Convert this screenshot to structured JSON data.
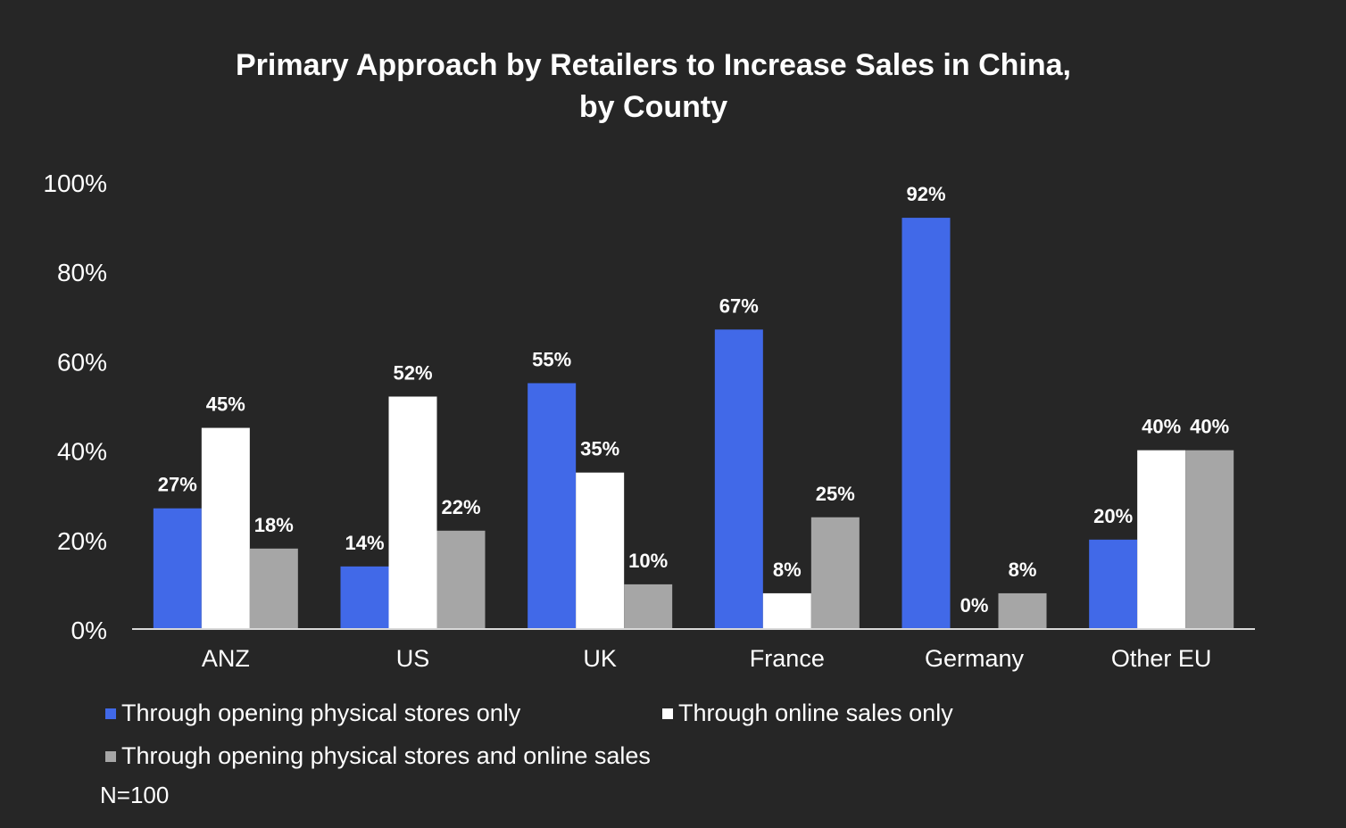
{
  "chart_data": {
    "type": "bar",
    "title": "Primary Approach by Retailers to Increase Sales in China, by County",
    "categories": [
      "ANZ",
      "US",
      "UK",
      "France",
      "Germany",
      "Other EU"
    ],
    "series": [
      {
        "name": "Through opening physical stores only",
        "color": "#4169E8",
        "values": [
          27,
          14,
          55,
          67,
          92,
          20
        ]
      },
      {
        "name": "Through online sales only",
        "color": "#FFFFFF",
        "values": [
          45,
          52,
          35,
          8,
          0,
          40
        ]
      },
      {
        "name": "Through opening physical stores and online sales",
        "color": "#A6A6A6",
        "values": [
          18,
          22,
          10,
          25,
          8,
          40
        ]
      }
    ],
    "ylim": [
      0,
      100
    ],
    "yticks": [
      0,
      20,
      40,
      60,
      80,
      100
    ],
    "ytick_labels": [
      "0%",
      "20%",
      "40%",
      "60%",
      "80%",
      "100%"
    ],
    "value_suffix": "%",
    "xlabel": "",
    "ylabel": "",
    "grid": false,
    "legend_position": "bottom-left"
  },
  "note": "N=100",
  "colors": {
    "background": "#262626",
    "axis": "#D9D9D9",
    "text": "#FFFFFF"
  }
}
